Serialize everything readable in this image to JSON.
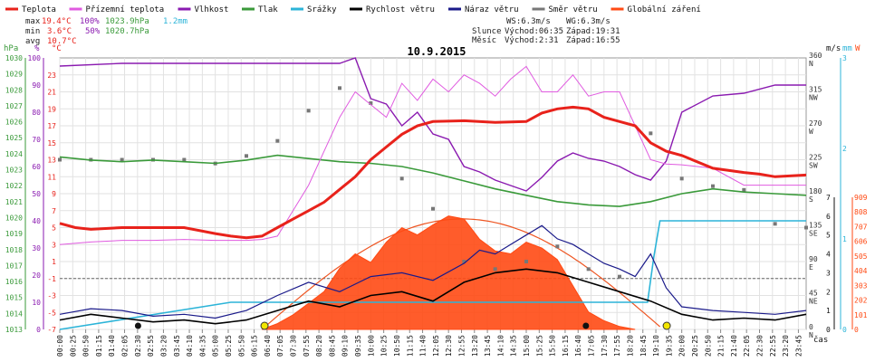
{
  "legend": [
    {
      "label": "Teplota",
      "color": "#e8221b"
    },
    {
      "label": "Přízemní teplota",
      "color": "#e05be0"
    },
    {
      "label": "Vlhkost",
      "color": "#8a1ab0"
    },
    {
      "label": "Tlak",
      "color": "#3a9a3a"
    },
    {
      "label": "Srážky",
      "color": "#2cb4d8"
    },
    {
      "label": "Rychlost větru",
      "color": "#000000"
    },
    {
      "label": "Náraz větru",
      "color": "#1a1a8a"
    },
    {
      "label": "Směr větru",
      "color": "#777777"
    },
    {
      "label": "Globální záření",
      "color": "#ff4a14"
    }
  ],
  "stats": {
    "max": {
      "label": "max",
      "temp": "19.4°C",
      "hum": "100%",
      "press": "1023.9hPa",
      "rain": "1.2mm"
    },
    "min": {
      "label": "min",
      "temp": "3.6°C",
      "hum": "50%",
      "press": "1020.7hPa"
    },
    "avg": {
      "label": "avg",
      "temp": "10.7°C"
    }
  },
  "info": {
    "ws": "WS:6.3m/s",
    "wg": "WG:6.3m/s",
    "sun_label": "Slunce",
    "sunrise": "Východ:06:35",
    "sunset": "Západ:19:31",
    "moon_label": "Měsíc",
    "moonrise": "Východ:2:31",
    "moonset": "Západ:16:55"
  },
  "date": "10.9.2015",
  "axis_units": {
    "hpa": "hPa",
    "pct": "%",
    "degc": "°C",
    "ms": "m/s",
    "mm": "mm",
    "w": "W",
    "time": "čas"
  },
  "colors": {
    "temp": "#e8221b",
    "ground": "#e05be0",
    "hum": "#8a1ab0",
    "press": "#3a9a3a",
    "rain": "#2cb4d8",
    "wind": "#000000",
    "gust": "#1a1a8a",
    "dir": "#777777",
    "rad": "#ff4a14",
    "theory": "#ee5522"
  },
  "chart_data": {
    "type": "line",
    "title": "10.9.2015",
    "x_unit": "hour of day",
    "xlim": [
      0,
      24
    ],
    "x_tick_labels": [
      "00:00",
      "00:25",
      "00:50",
      "01:15",
      "01:40",
      "02:05",
      "02:30",
      "02:55",
      "03:20",
      "03:45",
      "04:10",
      "04:35",
      "05:00",
      "05:25",
      "05:50",
      "06:15",
      "06:40",
      "07:05",
      "07:30",
      "07:55",
      "08:20",
      "08:45",
      "09:10",
      "09:35",
      "10:00",
      "10:25",
      "10:50",
      "11:15",
      "11:40",
      "12:05",
      "12:30",
      "12:55",
      "13:20",
      "13:45",
      "14:10",
      "14:35",
      "15:00",
      "15:25",
      "15:50",
      "16:15",
      "16:40",
      "17:05",
      "17:30",
      "17:55",
      "18:20",
      "18:45",
      "19:10",
      "19:35",
      "20:00",
      "20:25",
      "20:50",
      "21:15",
      "21:40",
      "22:05",
      "22:30",
      "22:55",
      "23:20",
      "23:45"
    ],
    "axes": {
      "pressure_hpa": {
        "range": [
          1013,
          1030
        ],
        "ticks": [
          1013,
          1014,
          1015,
          1016,
          1017,
          1018,
          1019,
          1020,
          1021,
          1022,
          1023,
          1024,
          1025,
          1026,
          1027,
          1028,
          1029,
          1030
        ]
      },
      "humidity_pct": {
        "range": [
          0,
          100
        ],
        "ticks": [
          0,
          10,
          20,
          30,
          40,
          50,
          60,
          70,
          80,
          90,
          100
        ]
      },
      "temperature_c": {
        "range": [
          -7,
          25
        ],
        "ticks": [
          -7,
          -5,
          -3,
          -1,
          1,
          3,
          5,
          7,
          9,
          11,
          13,
          15,
          17,
          19,
          21,
          23
        ]
      },
      "wind_dir_deg": {
        "ticks": [
          0,
          45,
          90,
          135,
          180,
          225,
          270,
          315,
          360
        ],
        "labels": [
          "N",
          "NE",
          "E",
          "SE",
          "S",
          "SW",
          "W",
          "NW",
          "N"
        ]
      },
      "wind_ms": {
        "range": [
          0,
          7
        ],
        "ticks": [
          0,
          1,
          2,
          3,
          4,
          5,
          6,
          7
        ]
      },
      "rain_mm": {
        "range": [
          0,
          3
        ],
        "ticks": [
          0,
          1,
          2,
          3
        ]
      },
      "radiation_w": {
        "range": [
          0,
          909
        ],
        "ticks": [
          0,
          101,
          202,
          303,
          404,
          505,
          606,
          707,
          808,
          909
        ]
      }
    },
    "series": [
      {
        "name": "Teplota",
        "unit": "°C",
        "x": [
          0,
          0.5,
          1,
          2,
          3,
          4,
          5,
          5.5,
          6,
          6.5,
          7,
          7.5,
          8,
          8.5,
          9,
          9.5,
          10,
          10.5,
          11,
          11.5,
          12,
          13,
          14,
          15,
          15.5,
          16,
          16.5,
          17,
          17.5,
          18,
          18.5,
          19,
          19.5,
          20,
          21,
          22,
          22.5,
          23,
          24
        ],
        "y": [
          5.5,
          5,
          4.8,
          5,
          5,
          5,
          4.3,
          4,
          3.8,
          4,
          5,
          6,
          7,
          8,
          9.5,
          11,
          13,
          14.5,
          16,
          17,
          17.5,
          17.6,
          17.4,
          17.5,
          18.5,
          19,
          19.2,
          19,
          18,
          17.5,
          17,
          15,
          14,
          13.5,
          12,
          11.5,
          11.3,
          11,
          11.2
        ]
      },
      {
        "name": "Přízemní teplota",
        "unit": "°C",
        "x": [
          0,
          1,
          2,
          3,
          4,
          5,
          6,
          6.5,
          7,
          7.5,
          8,
          8.5,
          9,
          9.5,
          10,
          10.5,
          11,
          11.5,
          12,
          12.5,
          13,
          13.5,
          14,
          14.5,
          15,
          15.5,
          16,
          16.5,
          17,
          17.5,
          18,
          18.5,
          19,
          19.5,
          20,
          21,
          22,
          23,
          24
        ],
        "y": [
          3,
          3.3,
          3.5,
          3.5,
          3.6,
          3.5,
          3.5,
          3.6,
          4,
          7,
          10,
          14,
          18,
          21,
          19.5,
          18,
          22,
          20,
          22.5,
          21,
          23,
          22,
          20.5,
          22.5,
          24,
          21,
          21,
          23,
          20.5,
          21,
          21,
          17,
          13,
          12.5,
          12.4,
          12,
          10,
          10,
          10
        ]
      },
      {
        "name": "Vlhkost",
        "unit": "%",
        "x": [
          0,
          2,
          4,
          6,
          7,
          8,
          9,
          9.5,
          10,
          10.5,
          11,
          11.5,
          12,
          12.5,
          13,
          13.5,
          14,
          14.5,
          15,
          15.5,
          16,
          16.5,
          17,
          17.5,
          18,
          18.5,
          19,
          19.5,
          20,
          21,
          22,
          23,
          24
        ],
        "y": [
          97,
          98,
          98,
          98,
          98,
          98,
          98,
          100,
          85,
          83,
          75,
          80,
          72,
          70,
          60,
          58,
          55,
          53,
          51,
          56,
          62,
          65,
          63,
          62,
          60,
          57,
          55,
          62,
          80,
          86,
          87,
          90,
          90
        ]
      },
      {
        "name": "Tlak",
        "unit": "hPa",
        "x": [
          0,
          1,
          2,
          3,
          4,
          5,
          6,
          7,
          8,
          9,
          10,
          11,
          12,
          13,
          14,
          15,
          16,
          17,
          18,
          19,
          20,
          21,
          22,
          23,
          24
        ],
        "y": [
          1023.8,
          1023.6,
          1023.5,
          1023.6,
          1023.5,
          1023.4,
          1023.6,
          1023.9,
          1023.7,
          1023.5,
          1023.4,
          1023.2,
          1022.8,
          1022.3,
          1021.8,
          1021.4,
          1021.0,
          1020.8,
          1020.7,
          1021,
          1021.5,
          1021.8,
          1021.6,
          1021.5,
          1021.4
        ]
      },
      {
        "name": "Srážky",
        "unit": "mm",
        "x": [
          0,
          5.5,
          8.2,
          9,
          10,
          11,
          12,
          14,
          16,
          18,
          18.9,
          19.1,
          19.3,
          20,
          24
        ],
        "y": [
          0,
          0.3,
          0.3,
          0.3,
          0.3,
          0.3,
          0.3,
          0.3,
          0.3,
          0.3,
          0.3,
          0.8,
          1.2,
          1.2,
          1.2
        ]
      },
      {
        "name": "Rychlost větru",
        "unit": "m/s",
        "x": [
          0,
          1,
          2,
          3,
          4,
          5,
          6,
          7,
          8,
          9,
          10,
          11,
          12,
          13,
          14,
          15,
          16,
          17,
          18,
          19,
          20,
          21,
          22,
          23,
          24
        ],
        "y": [
          0.5,
          0.8,
          0.6,
          0.4,
          0.5,
          0.3,
          0.5,
          1,
          1.5,
          1.2,
          1.8,
          2,
          1.5,
          2.5,
          3,
          3.2,
          3,
          2.5,
          2,
          1.5,
          0.8,
          0.5,
          0.6,
          0.5,
          0.8
        ]
      },
      {
        "name": "Náraz větru",
        "unit": "m/s",
        "x": [
          0,
          1,
          2,
          3,
          4,
          5,
          6,
          7,
          8,
          9,
          10,
          11,
          12,
          13,
          13.5,
          14,
          14.5,
          15,
          15.5,
          16,
          16.5,
          17,
          17.5,
          18,
          18.5,
          19,
          19.5,
          20,
          21,
          22,
          23,
          24
        ],
        "y": [
          0.8,
          1.1,
          1,
          0.7,
          0.8,
          0.6,
          1,
          1.8,
          2.5,
          2,
          2.8,
          3,
          2.6,
          3.5,
          4.2,
          4,
          4.5,
          5,
          5.5,
          4.8,
          4.5,
          4,
          3.5,
          3.2,
          2.8,
          4,
          2.2,
          1.2,
          1,
          0.9,
          0.8,
          1
        ]
      },
      {
        "name": "Globální záření",
        "unit": "W/m²",
        "x": [
          6.5,
          7,
          7.5,
          8,
          8.5,
          9,
          9.5,
          10,
          10.5,
          11,
          11.5,
          12,
          12.5,
          13,
          13.5,
          14,
          14.5,
          15,
          15.5,
          16,
          16.5,
          17,
          17.5,
          18,
          18.5
        ],
        "y": [
          0,
          40,
          100,
          180,
          260,
          420,
          520,
          460,
          600,
          700,
          650,
          720,
          780,
          760,
          620,
          540,
          520,
          600,
          560,
          480,
          300,
          120,
          60,
          20,
          0
        ]
      },
      {
        "name": "Směr větru",
        "unit": "°",
        "x": [
          0,
          1,
          2,
          3,
          4,
          5,
          6,
          7,
          8,
          9,
          10,
          11,
          12,
          13,
          14,
          15,
          16,
          17,
          18,
          19,
          20,
          21,
          22,
          23,
          24
        ],
        "y": [
          225,
          225,
          225,
          225,
          225,
          220,
          230,
          250,
          290,
          320,
          300,
          200,
          160,
          90,
          80,
          90,
          110,
          80,
          70,
          260,
          200,
          190,
          185,
          140,
          135
        ]
      }
    ]
  }
}
